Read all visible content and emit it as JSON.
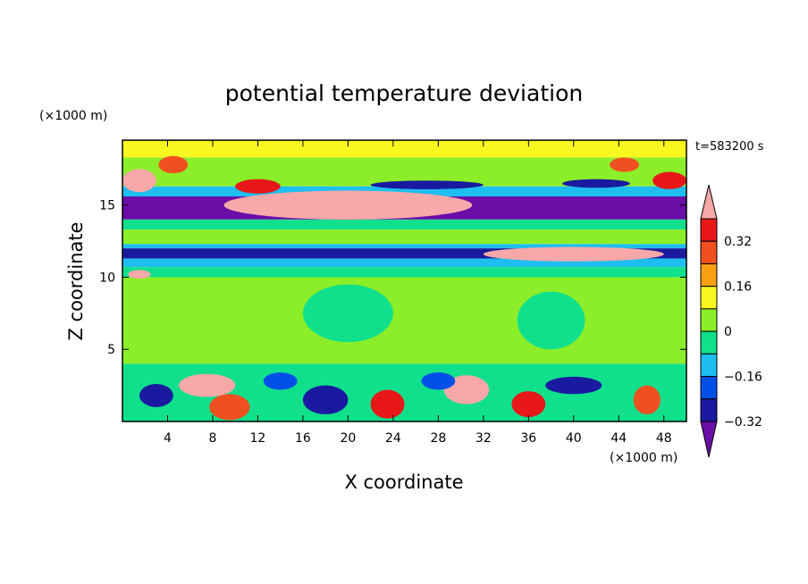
{
  "chart_data": {
    "type": "heatmap",
    "title": "potential temperature deviation",
    "xlabel": "X coordinate",
    "ylabel": "Z coordinate",
    "x_unit": "(×1000 m)",
    "y_unit": "(×1000 m)",
    "time_label": "t=583200 s",
    "xlim": [
      0,
      50
    ],
    "ylim": [
      0,
      19.5
    ],
    "x_ticks": [
      "4",
      "8",
      "12",
      "16",
      "20",
      "24",
      "28",
      "32",
      "36",
      "40",
      "44",
      "48"
    ],
    "y_ticks": [
      "5",
      "10",
      "15"
    ],
    "colorbar": {
      "levels": [
        -0.4,
        -0.32,
        -0.24,
        -0.16,
        -0.08,
        0,
        0.08,
        0.16,
        0.24,
        0.32,
        0.4
      ],
      "labels": [
        "0.32",
        "0.16",
        "0",
        "−0.16",
        "−0.32"
      ],
      "colors": [
        "#6a0ea8",
        "#1a1aa0",
        "#0050e8",
        "#1ebef0",
        "#10e08c",
        "#8cee28",
        "#f8f820",
        "#f8a010",
        "#f05020",
        "#e81818",
        "#f8a8a8"
      ]
    },
    "bands": [
      {
        "z": [
          18.3,
          19.5
        ],
        "bin": 6
      },
      {
        "z": [
          16.3,
          18.3
        ],
        "bin": 5
      },
      {
        "z": [
          15.6,
          16.3
        ],
        "bin": 3
      },
      {
        "z": [
          14.0,
          15.6
        ],
        "bin": 0
      },
      {
        "z": [
          13.3,
          14.0
        ],
        "bin": 4
      },
      {
        "z": [
          12.3,
          13.3
        ],
        "bin": 5
      },
      {
        "z": [
          12.0,
          12.3
        ],
        "bin": 3
      },
      {
        "z": [
          11.3,
          12.0
        ],
        "bin": 1
      },
      {
        "z": [
          10.7,
          11.3
        ],
        "bin": 3
      },
      {
        "z": [
          10.0,
          10.7
        ],
        "bin": 4
      },
      {
        "z": [
          4.0,
          10.0
        ],
        "bin": 5
      },
      {
        "z": [
          3.5,
          4.0
        ],
        "bin": 4
      },
      {
        "z": [
          0,
          3.5
        ],
        "bin": 4
      }
    ],
    "features": [
      {
        "x": 4.5,
        "z": 17.8,
        "rx": 1.3,
        "rz": 0.6,
        "bin": 8
      },
      {
        "x": 44.5,
        "z": 17.8,
        "rx": 1.3,
        "rz": 0.5,
        "bin": 8
      },
      {
        "x": 20,
        "z": 15.0,
        "rx": 11,
        "rz": 1.0,
        "bin": 10
      },
      {
        "x": 12,
        "z": 16.3,
        "rx": 2,
        "rz": 0.5,
        "bin": 9
      },
      {
        "x": 1.5,
        "z": 16.7,
        "rx": 1.5,
        "rz": 0.8,
        "bin": 10
      },
      {
        "x": 48.5,
        "z": 16.7,
        "rx": 1.5,
        "rz": 0.6,
        "bin": 9
      },
      {
        "x": 27,
        "z": 16.4,
        "rx": 5,
        "rz": 0.3,
        "bin": 1
      },
      {
        "x": 42,
        "z": 16.5,
        "rx": 3,
        "rz": 0.3,
        "bin": 1
      },
      {
        "x": 40,
        "z": 11.6,
        "rx": 8,
        "rz": 0.5,
        "bin": 10
      },
      {
        "x": 1.5,
        "z": 10.2,
        "rx": 1,
        "rz": 0.3,
        "bin": 10
      },
      {
        "x": 7.5,
        "z": 2.5,
        "rx": 2.5,
        "rz": 0.8,
        "bin": 10
      },
      {
        "x": 30.5,
        "z": 2.2,
        "rx": 2,
        "rz": 1.0,
        "bin": 10
      },
      {
        "x": 23.5,
        "z": 1.2,
        "rx": 1.5,
        "rz": 1.0,
        "bin": 9
      },
      {
        "x": 9.5,
        "z": 1.0,
        "rx": 1.8,
        "rz": 0.9,
        "bin": 8
      },
      {
        "x": 46.5,
        "z": 1.5,
        "rx": 1.2,
        "rz": 1.0,
        "bin": 8
      },
      {
        "x": 36,
        "z": 1.2,
        "rx": 1.5,
        "rz": 0.9,
        "bin": 9
      },
      {
        "x": 18,
        "z": 1.5,
        "rx": 2,
        "rz": 1.0,
        "bin": 1
      },
      {
        "x": 3,
        "z": 1.8,
        "rx": 1.5,
        "rz": 0.8,
        "bin": 1
      },
      {
        "x": 40,
        "z": 2.5,
        "rx": 2.5,
        "rz": 0.6,
        "bin": 1
      },
      {
        "x": 14,
        "z": 2.8,
        "rx": 1.5,
        "rz": 0.6,
        "bin": 2
      },
      {
        "x": 28,
        "z": 2.8,
        "rx": 1.5,
        "rz": 0.6,
        "bin": 2
      },
      {
        "x": 20,
        "z": 7.5,
        "rx": 4,
        "rz": 2,
        "bin": 4
      },
      {
        "x": 38,
        "z": 7.0,
        "rx": 3,
        "rz": 2,
        "bin": 4
      }
    ]
  }
}
